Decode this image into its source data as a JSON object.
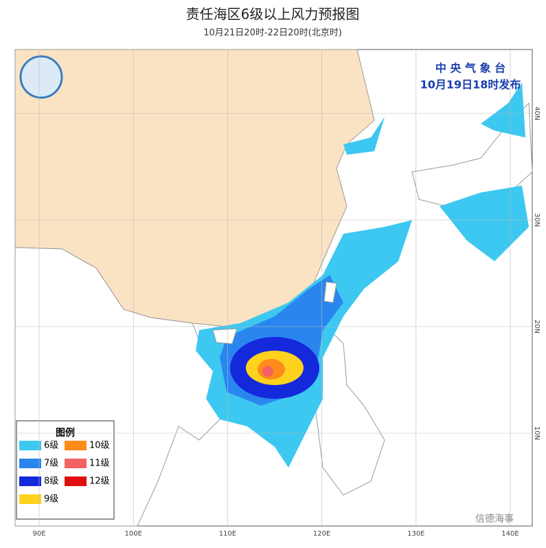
{
  "header": {
    "title": "责任海区6级以上风力预报图",
    "subtitle": "10月21日20时-22日20时(北京时)"
  },
  "issuer": {
    "agency": "中 央 气 象 台",
    "issued": "10月19日18时发布"
  },
  "legend": {
    "title": "图例",
    "items": [
      {
        "label": "6级",
        "color": "#3cc8f0"
      },
      {
        "label": "7级",
        "color": "#2a86ee"
      },
      {
        "label": "8级",
        "color": "#1428dc"
      },
      {
        "label": "9级",
        "color": "#ffd21e"
      },
      {
        "label": "10级",
        "color": "#ff8c1a"
      },
      {
        "label": "11级",
        "color": "#f26262"
      },
      {
        "label": "12级",
        "color": "#e01010"
      }
    ]
  },
  "longitudes": [
    "90E",
    "100E",
    "110E",
    "120E",
    "130E",
    "140E"
  ],
  "latitudes": [
    "40N",
    "30N",
    "20N",
    "10N"
  ],
  "watermark": "信德海事"
}
